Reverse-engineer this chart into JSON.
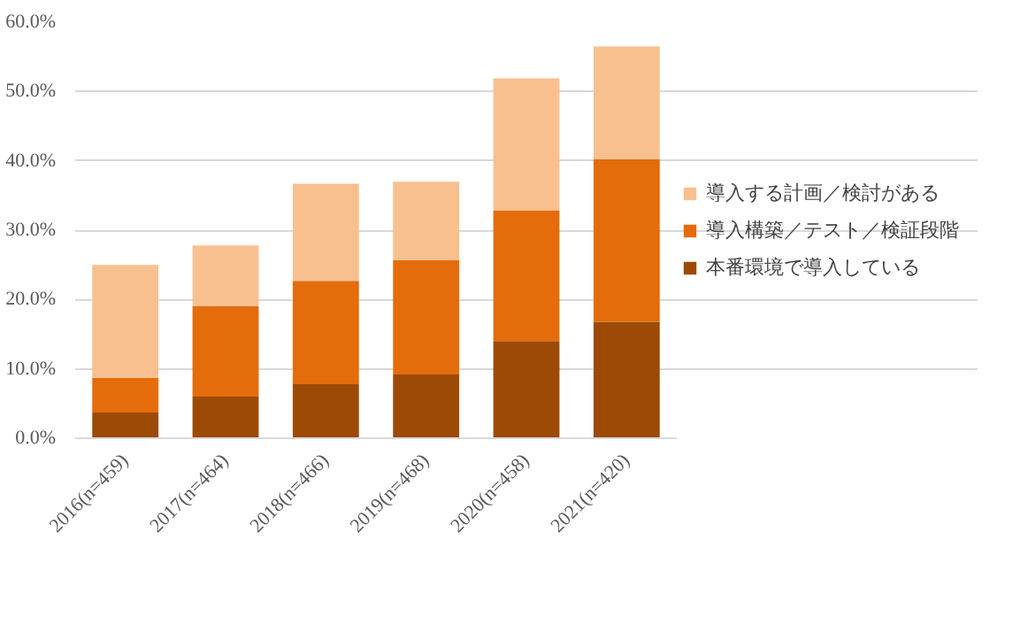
{
  "chart_data": {
    "type": "bar",
    "stacked": true,
    "categories": [
      "2016(n=459)",
      "2017(n=464)",
      "2018(n=466)",
      "2019(n=468)",
      "2020(n=458)",
      "2021(n=420)"
    ],
    "series": [
      {
        "name": "本番環境で導入している",
        "color": "#9c4a06",
        "values": [
          3.7,
          6.0,
          7.8,
          9.2,
          14.0,
          16.8
        ]
      },
      {
        "name": "導入構築／テスト／検証段階",
        "color": "#e46c0a",
        "values": [
          5.0,
          13.1,
          14.9,
          16.5,
          18.8,
          23.4
        ]
      },
      {
        "name": "導入する計画／検討がある",
        "color": "#f9c08f",
        "values": [
          16.3,
          8.7,
          14.0,
          11.3,
          19.1,
          16.3
        ]
      }
    ],
    "ylim": [
      0,
      60
    ],
    "yticks": [
      {
        "value": 0,
        "label": "0.0%"
      },
      {
        "value": 10,
        "label": "10.0%"
      },
      {
        "value": 20,
        "label": "20.0%"
      },
      {
        "value": 30,
        "label": "30.0%"
      },
      {
        "value": 40,
        "label": "40.0%"
      },
      {
        "value": 50,
        "label": "50.0%"
      },
      {
        "value": 60,
        "label": "60.0%"
      }
    ],
    "grid": "y",
    "legend": "right"
  }
}
